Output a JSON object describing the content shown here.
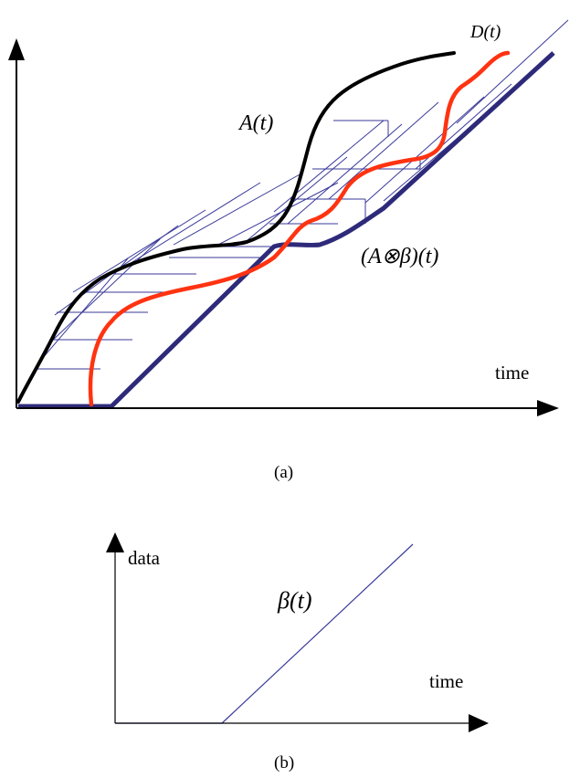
{
  "panel_a": {
    "caption": "(a)",
    "x_axis_label": "time",
    "curve_A_label": "A(t)",
    "curve_D_label": "D(t)",
    "curve_conv_label": "(A⊗β)(t)",
    "colors": {
      "arrival_curve": "#000000",
      "departure_curve": "#ff3311",
      "convolution_curve": "#2e2a7a",
      "construction_lines": "#3a3a9a",
      "axes": "#000000"
    }
  },
  "panel_b": {
    "caption": "(b)",
    "y_axis_label": "data",
    "x_axis_label": "time",
    "curve_label": "β(t)",
    "colors": {
      "service_curve": "#3a3a9a",
      "axes": "#000000"
    }
  }
}
